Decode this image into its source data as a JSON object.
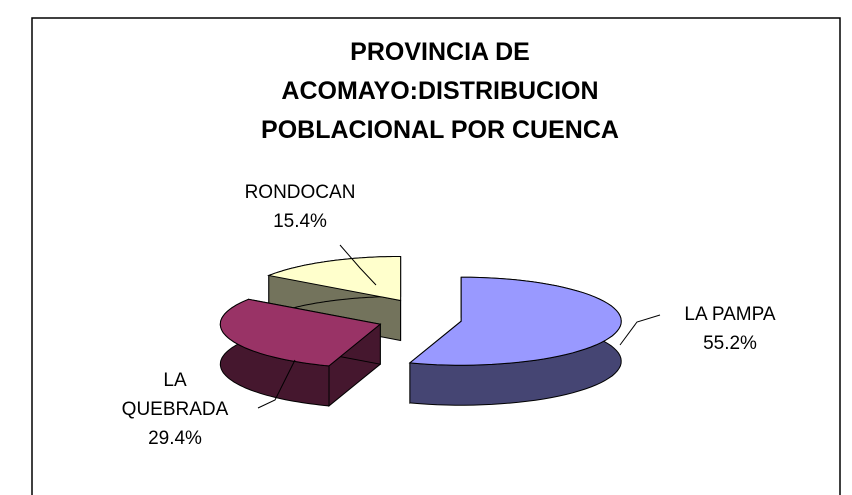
{
  "chart_data": {
    "type": "pie",
    "title": [
      "PROVINCIA DE",
      "ACOMAYO:DISTRIBUCION",
      "POBLACIONAL POR CUENCA"
    ],
    "categories": [
      "LA PAMPA",
      "LA QUEBRADA",
      "RONDOCAN"
    ],
    "values": [
      55.2,
      29.4,
      15.4
    ],
    "value_labels": [
      "55.2%",
      "29.4%",
      "15.4%"
    ],
    "colors": [
      "#9999ff",
      "#993366",
      "#ffffcc"
    ]
  }
}
